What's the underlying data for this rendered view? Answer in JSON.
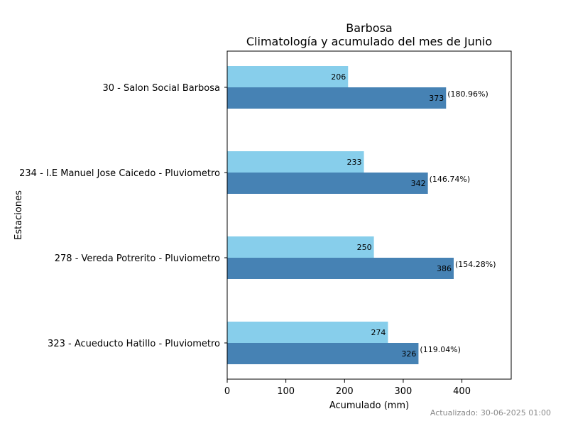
{
  "chart_data": {
    "type": "bar",
    "orientation": "horizontal",
    "title": "Barbosa",
    "subtitle": "Climatología y acumulado del mes de Junio",
    "xlabel": "Acumulado (mm)",
    "ylabel": "Estaciones",
    "categories": [
      "30 - Salon Social Barbosa",
      "234 - I.E Manuel Jose Caicedo - Pluviometro",
      "278 - Vereda Potrerito - Pluviometro",
      "323 - Acueducto Hatillo - Pluviometro"
    ],
    "series": [
      {
        "values": [
          206,
          233,
          250,
          274
        ],
        "color": "#87ceeb",
        "labels": [
          "206",
          "233",
          "250",
          "274"
        ]
      },
      {
        "values": [
          373,
          342,
          386,
          326
        ],
        "color": "#4682b4",
        "labels": [
          "373",
          "342",
          "386",
          "326"
        ],
        "percent_labels": [
          "(180.96%)",
          "(146.74%)",
          "(154.28%)",
          "(119.04%)"
        ]
      }
    ],
    "xlim": [
      0,
      484
    ],
    "xticks": [
      "0",
      "100",
      "200",
      "300",
      "400"
    ],
    "grid": false,
    "legend": "none"
  },
  "footer": {
    "updated": "Actualizado: 30-06-2025 01:00"
  }
}
